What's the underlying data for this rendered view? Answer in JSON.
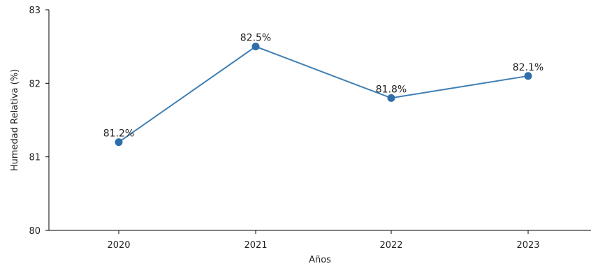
{
  "chart_data": {
    "type": "line",
    "title": "",
    "xlabel": "Años",
    "ylabel": "Humedad Relativa (%)",
    "categories": [
      "2020",
      "2021",
      "2022",
      "2023"
    ],
    "series": [
      {
        "values": [
          81.2,
          82.5,
          81.8,
          82.1
        ],
        "color": "#2e6fab",
        "line_color": "#3e7fb4"
      }
    ],
    "data_labels": [
      "81.2%",
      "82.5%",
      "81.8%",
      "82.1%"
    ],
    "y_ticks": [
      80,
      81,
      82,
      83
    ],
    "y_tick_labels": [
      "80",
      "81",
      "82",
      "83"
    ],
    "ylim": [
      80,
      83
    ],
    "grid": false,
    "legend": "none"
  }
}
